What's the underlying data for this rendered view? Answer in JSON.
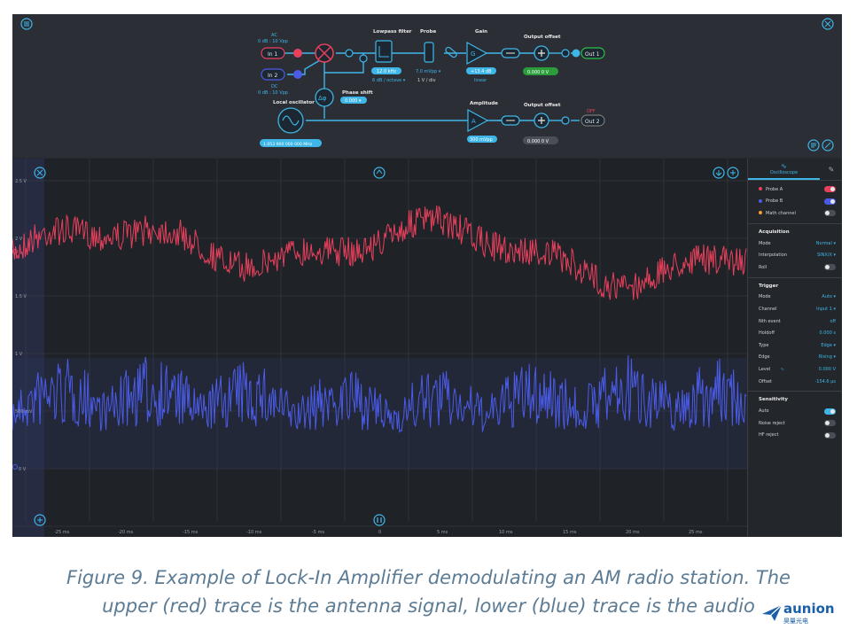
{
  "block": {
    "in1_top": "AC",
    "in1_sub": "0 dB : 10 Vpp",
    "in1": "In 1",
    "in2_top": "DC",
    "in2_sub": "0 dB : 10 Vpp",
    "in2": "In 2",
    "lowpass_title": "Lowpass filter",
    "lowpass_val": "12.0 kHz",
    "lowpass_slope": "6 dB / octave ▾",
    "probe_title": "Probe",
    "probe_val": "7.0 mVpp ▾",
    "probe_sub": "1 V / div",
    "gain_title": "Gain",
    "gain_val": "+13.4 dB",
    "gain_sub": "linear",
    "offset1_title": "Output offset",
    "offset1_val": "0.000 0 V",
    "out1": "Out 1",
    "phase_title": "Phase shift",
    "phase_val": "0.000 ▾",
    "lo_title": "Local oscillator",
    "lo_val": "1.053 900 000 000 MHz",
    "amp_title": "Amplitude",
    "amp_val": "300 mVpp",
    "offset2_title": "Output offset",
    "offset2_val": "0.000 0 V",
    "out2_state": "OFF",
    "out2": "Out 2"
  },
  "scope": {
    "y_labels": [
      "2.5 V",
      "2 V",
      "1.5 V",
      "1 V",
      "500 mV",
      "0 V"
    ],
    "x_labels": [
      "-25 ms",
      "-20 ms",
      "-15 ms",
      "-10 ms",
      "-5 ms",
      "0",
      "5 ms",
      "10 ms",
      "15 ms",
      "20 ms",
      "25 ms"
    ]
  },
  "sidebar": {
    "tab": "Oscilloscope",
    "probes": [
      {
        "label": "Probe A",
        "color": "#e8405c"
      },
      {
        "label": "Probe B",
        "color": "#4a5be8"
      },
      {
        "label": "Math channel",
        "color": "#f0a030"
      }
    ],
    "acquisition": {
      "title": "Acquisition",
      "rows": [
        {
          "label": "Mode",
          "value": "Normal ▾"
        },
        {
          "label": "Interpolation",
          "value": "SINX/X ▾"
        },
        {
          "label": "Roll",
          "value": ""
        }
      ]
    },
    "trigger": {
      "title": "Trigger",
      "rows": [
        {
          "label": "Mode",
          "value": "Auto ▾"
        },
        {
          "label": "Channel",
          "value": "Input 1 ▾"
        },
        {
          "label": "Nth event",
          "value": "off"
        },
        {
          "label": "Holdoff",
          "value": "0.000 s"
        },
        {
          "label": "Type",
          "value": "Edge ▾"
        },
        {
          "label": "Edge",
          "value": "Rising ▾"
        },
        {
          "label": "Level",
          "value": "0.000 V"
        },
        {
          "label": "Offset",
          "value": "-154.6 µs"
        }
      ]
    },
    "sensitivity": {
      "title": "Sensitivity",
      "rows": [
        {
          "label": "Auto"
        },
        {
          "label": "Noise reject"
        },
        {
          "label": "HF reject"
        }
      ]
    }
  },
  "caption": {
    "line1": "Figure 9. Example of Lock-In Amplifier demodulating an AM radio station. The",
    "line2": "upper (red) trace is the antenna signal, lower (blue) trace is the audio"
  },
  "brand": {
    "name": "aunion",
    "sub": "昊量光电"
  }
}
